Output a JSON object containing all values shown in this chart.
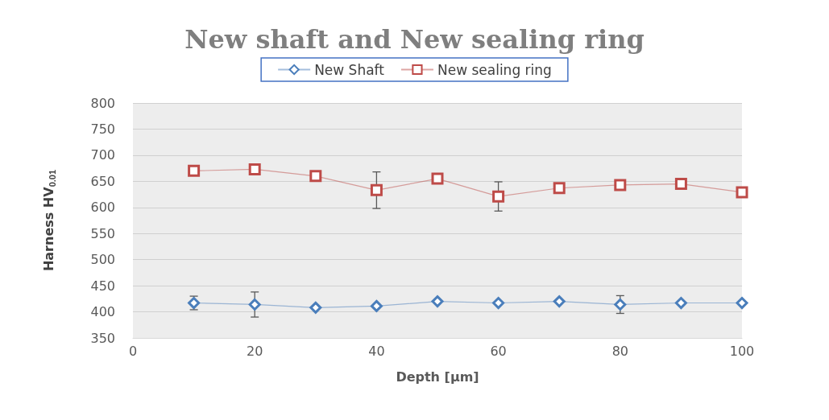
{
  "chart_data": {
    "type": "line",
    "title": "New shaft and New sealing ring",
    "xlabel": "Depth [µm]",
    "ylabel": "Harness HV$_{0.01}$",
    "x": [
      10,
      20,
      30,
      40,
      50,
      60,
      70,
      80,
      90,
      100
    ],
    "series": [
      {
        "name": "New Shaft",
        "color": "#4a7ebb",
        "marker": "diamond",
        "values": [
          417,
          414,
          408,
          411,
          420,
          417,
          420,
          414,
          417,
          417
        ],
        "errors": [
          13,
          24,
          null,
          null,
          null,
          null,
          null,
          17,
          null,
          null
        ]
      },
      {
        "name": "New sealing ring",
        "color": "#be4b48",
        "marker": "square",
        "values": [
          670,
          673,
          660,
          633,
          655,
          621,
          637,
          643,
          645,
          629
        ],
        "errors": [
          null,
          null,
          null,
          35,
          null,
          28,
          null,
          null,
          null,
          null
        ]
      }
    ],
    "xlim": [
      0,
      100
    ],
    "xticks": [
      0,
      20,
      40,
      60,
      80,
      100
    ],
    "ylim": [
      350,
      800
    ],
    "yticks": [
      350,
      400,
      450,
      500,
      550,
      600,
      650,
      700,
      750,
      800
    ],
    "grid": "y",
    "legend": "top",
    "line_style": "solid"
  }
}
